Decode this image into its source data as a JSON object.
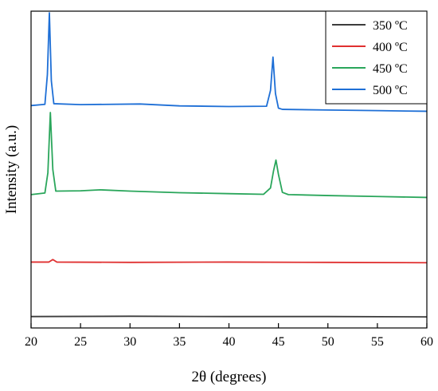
{
  "chart_data": {
    "type": "line",
    "xlabel": "2θ (degrees)",
    "ylabel": "Intensity (a.u.)",
    "xlim": [
      20,
      60
    ],
    "x_ticks": [
      20,
      25,
      30,
      35,
      40,
      45,
      50,
      55,
      60
    ],
    "x_tick_labels": [
      "20",
      "25",
      "30",
      "35",
      "40",
      "45",
      "50",
      "55",
      "60"
    ],
    "y_ticks_visible": false,
    "ylim": [
      0,
      100
    ],
    "grid": false,
    "legend_position": "top-right",
    "series": [
      {
        "name": "350 ºC",
        "color": "#3d3d3d",
        "x": [
          20,
          30,
          40,
          50,
          60
        ],
        "y": [
          3.6,
          3.7,
          3.6,
          3.6,
          3.5
        ]
      },
      {
        "name": "400 ºC",
        "color": "#e03030",
        "x": [
          20,
          21.8,
          22.2,
          22.6,
          30,
          40,
          50,
          60
        ],
        "y": [
          20.8,
          20.8,
          21.6,
          20.8,
          20.7,
          20.8,
          20.7,
          20.6
        ]
      },
      {
        "name": "450 ºC",
        "color": "#2aa65b",
        "x": [
          20,
          21.4,
          21.7,
          21.95,
          22.2,
          22.5,
          25,
          27,
          30,
          35,
          40,
          43.5,
          44.2,
          44.5,
          44.75,
          45.0,
          45.4,
          46,
          50,
          55,
          60
        ],
        "y": [
          42.1,
          42.6,
          49.0,
          68.0,
          50.0,
          43.2,
          43.3,
          43.6,
          43.2,
          42.7,
          42.4,
          42.2,
          44.2,
          49.5,
          53.0,
          48.5,
          42.8,
          42.1,
          41.8,
          41.5,
          41.2
        ]
      },
      {
        "name": "500 ºC",
        "color": "#1e6fd6",
        "x": [
          20,
          21.4,
          21.65,
          21.85,
          22.05,
          22.3,
          25,
          31,
          35,
          40,
          43.8,
          44.2,
          44.45,
          44.7,
          45.0,
          45.4,
          50,
          55,
          60
        ],
        "y": [
          70.2,
          70.6,
          80.0,
          99.5,
          78.0,
          70.8,
          70.5,
          70.7,
          70.1,
          69.9,
          70.0,
          75.0,
          85.5,
          74.0,
          69.4,
          69.0,
          68.8,
          68.6,
          68.4
        ]
      }
    ]
  }
}
